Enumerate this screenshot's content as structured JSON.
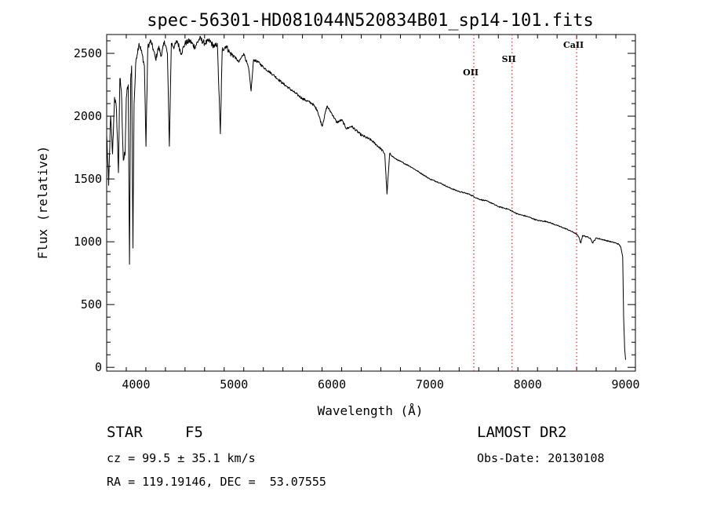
{
  "chart_data": {
    "type": "line",
    "title": "spec-56301-HD081044N520834B01_sp14-101.fits",
    "xlabel": "Wavelength (Å)",
    "ylabel": "Flux (relative)",
    "xlim": [
      3700,
      9100
    ],
    "ylim": [
      -30,
      2650
    ],
    "xticks": [
      4000,
      5000,
      6000,
      7000,
      8000,
      9000
    ],
    "yticks": [
      0,
      500,
      1000,
      1500,
      2000,
      2500
    ],
    "series": [
      {
        "name": "spectrum",
        "x": [
          3700,
          3720,
          3740,
          3760,
          3780,
          3800,
          3820,
          3835,
          3850,
          3870,
          3889,
          3900,
          3920,
          3933,
          3945,
          3955,
          3968,
          3980,
          4000,
          4030,
          4060,
          4085,
          4101,
          4120,
          4150,
          4180,
          4200,
          4230,
          4260,
          4290,
          4320,
          4340,
          4360,
          4390,
          4420,
          4460,
          4500,
          4550,
          4600,
          4650,
          4700,
          4750,
          4800,
          4830,
          4861,
          4880,
          4920,
          4960,
          5000,
          5050,
          5100,
          5150,
          5175,
          5200,
          5250,
          5300,
          5400,
          5500,
          5600,
          5700,
          5800,
          5850,
          5900,
          5950,
          6000,
          6050,
          6100,
          6150,
          6200,
          6300,
          6400,
          6500,
          6540,
          6563,
          6590,
          6650,
          6700,
          6800,
          6900,
          7000,
          7100,
          7200,
          7300,
          7400,
          7500,
          7600,
          7700,
          7800,
          7900,
          8000,
          8100,
          8200,
          8300,
          8400,
          8480,
          8500,
          8520,
          8542,
          8560,
          8600,
          8640,
          8662,
          8700,
          8750,
          8800,
          8850,
          8900,
          8930,
          8950,
          8970,
          8980,
          8990,
          9000
        ],
        "values": [
          1850,
          1450,
          2000,
          1700,
          2150,
          2050,
          1550,
          2300,
          2200,
          1650,
          1700,
          2150,
          2250,
          820,
          2300,
          2400,
          950,
          2100,
          2450,
          2580,
          2500,
          2400,
          1760,
          2550,
          2600,
          2520,
          2450,
          2550,
          2480,
          2600,
          2500,
          1760,
          2580,
          2550,
          2600,
          2500,
          2580,
          2600,
          2550,
          2620,
          2580,
          2600,
          2550,
          2580,
          1860,
          2530,
          2560,
          2500,
          2480,
          2430,
          2500,
          2380,
          2200,
          2450,
          2430,
          2390,
          2330,
          2260,
          2200,
          2140,
          2100,
          2050,
          1920,
          2080,
          2020,
          1950,
          1970,
          1900,
          1920,
          1850,
          1810,
          1740,
          1700,
          1380,
          1700,
          1660,
          1640,
          1600,
          1550,
          1500,
          1470,
          1430,
          1400,
          1380,
          1340,
          1320,
          1280,
          1260,
          1220,
          1200,
          1170,
          1160,
          1130,
          1100,
          1070,
          1060,
          1040,
          990,
          1050,
          1040,
          1030,
          990,
          1030,
          1020,
          1010,
          1000,
          990,
          980,
          960,
          880,
          400,
          150,
          60
        ]
      }
    ],
    "line_markers": [
      {
        "label": "OII",
        "x": 7450
      },
      {
        "label": "SII",
        "x": 7840
      },
      {
        "label": "CaII",
        "x": 8500
      }
    ],
    "marker_color": "#d03030"
  },
  "footer": {
    "object_class": "STAR",
    "subclass": "F5",
    "survey": "LAMOST DR2",
    "redshift": "cz = 99.5 ± 35.1 km/s",
    "obs_date": "Obs-Date: 20130108",
    "coords": "RA = 119.19146, DEC =  53.07555"
  }
}
